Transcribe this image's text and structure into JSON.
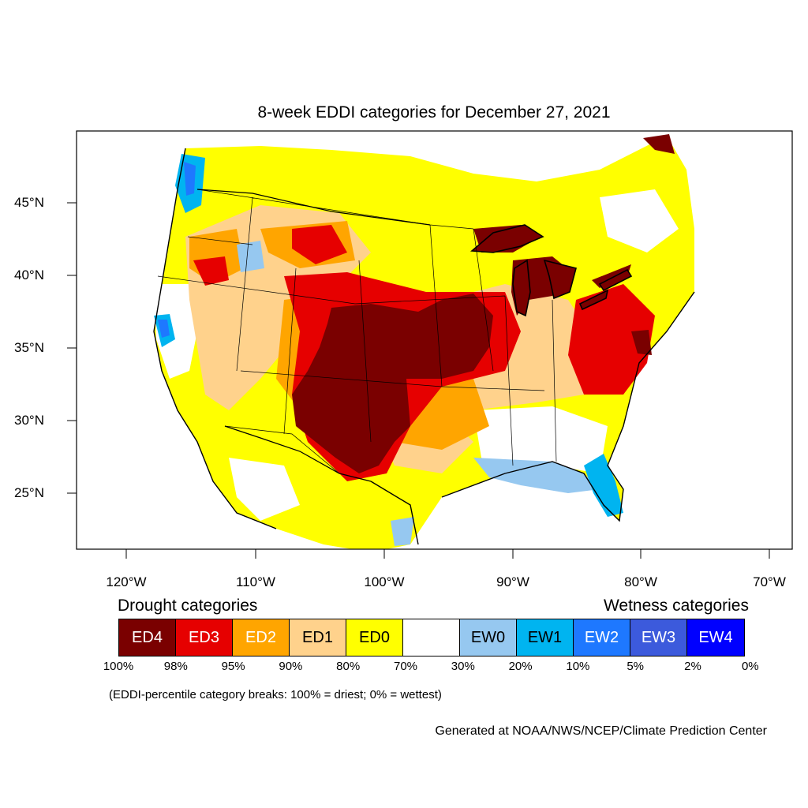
{
  "title": "8-week EDDI categories for December 27, 2021",
  "latitude_labels": [
    "45°N",
    "40°N",
    "35°N",
    "30°N",
    "25°N"
  ],
  "longitude_labels": [
    "120°W",
    "110°W",
    "100°W",
    "90°W",
    "80°W",
    "70°W"
  ],
  "legend": {
    "drought_heading": "Drought categories",
    "wetness_heading": "Wetness categories",
    "categories": [
      {
        "label": "ED4",
        "color": "#7a0000",
        "text_color": "#ffffff"
      },
      {
        "label": "ED3",
        "color": "#e60000",
        "text_color": "#ffffff"
      },
      {
        "label": "ED2",
        "color": "#ffa500",
        "text_color": "#ffffff"
      },
      {
        "label": "ED1",
        "color": "#ffd28c",
        "text_color": "#000000"
      },
      {
        "label": "ED0",
        "color": "#ffff00",
        "text_color": "#000000"
      },
      {
        "label": "",
        "color": "#ffffff",
        "text_color": "#000000"
      },
      {
        "label": "EW0",
        "color": "#96c8f0",
        "text_color": "#000000"
      },
      {
        "label": "EW1",
        "color": "#00b4f0",
        "text_color": "#000000"
      },
      {
        "label": "EW2",
        "color": "#1e78ff",
        "text_color": "#ffffff"
      },
      {
        "label": "EW3",
        "color": "#3c5adc",
        "text_color": "#ffffff"
      },
      {
        "label": "EW4",
        "color": "#0000ff",
        "text_color": "#ffffff"
      }
    ],
    "percentiles": [
      "100%",
      "98%",
      "95%",
      "90%",
      "80%",
      "70%",
      "30%",
      "20%",
      "10%",
      "5%",
      "2%",
      "0%"
    ]
  },
  "note": "(EDDI-percentile category breaks: 100% = driest; 0% = wettest)",
  "credit": "Generated at NOAA/NWS/NCEP/Climate Prediction Center"
}
